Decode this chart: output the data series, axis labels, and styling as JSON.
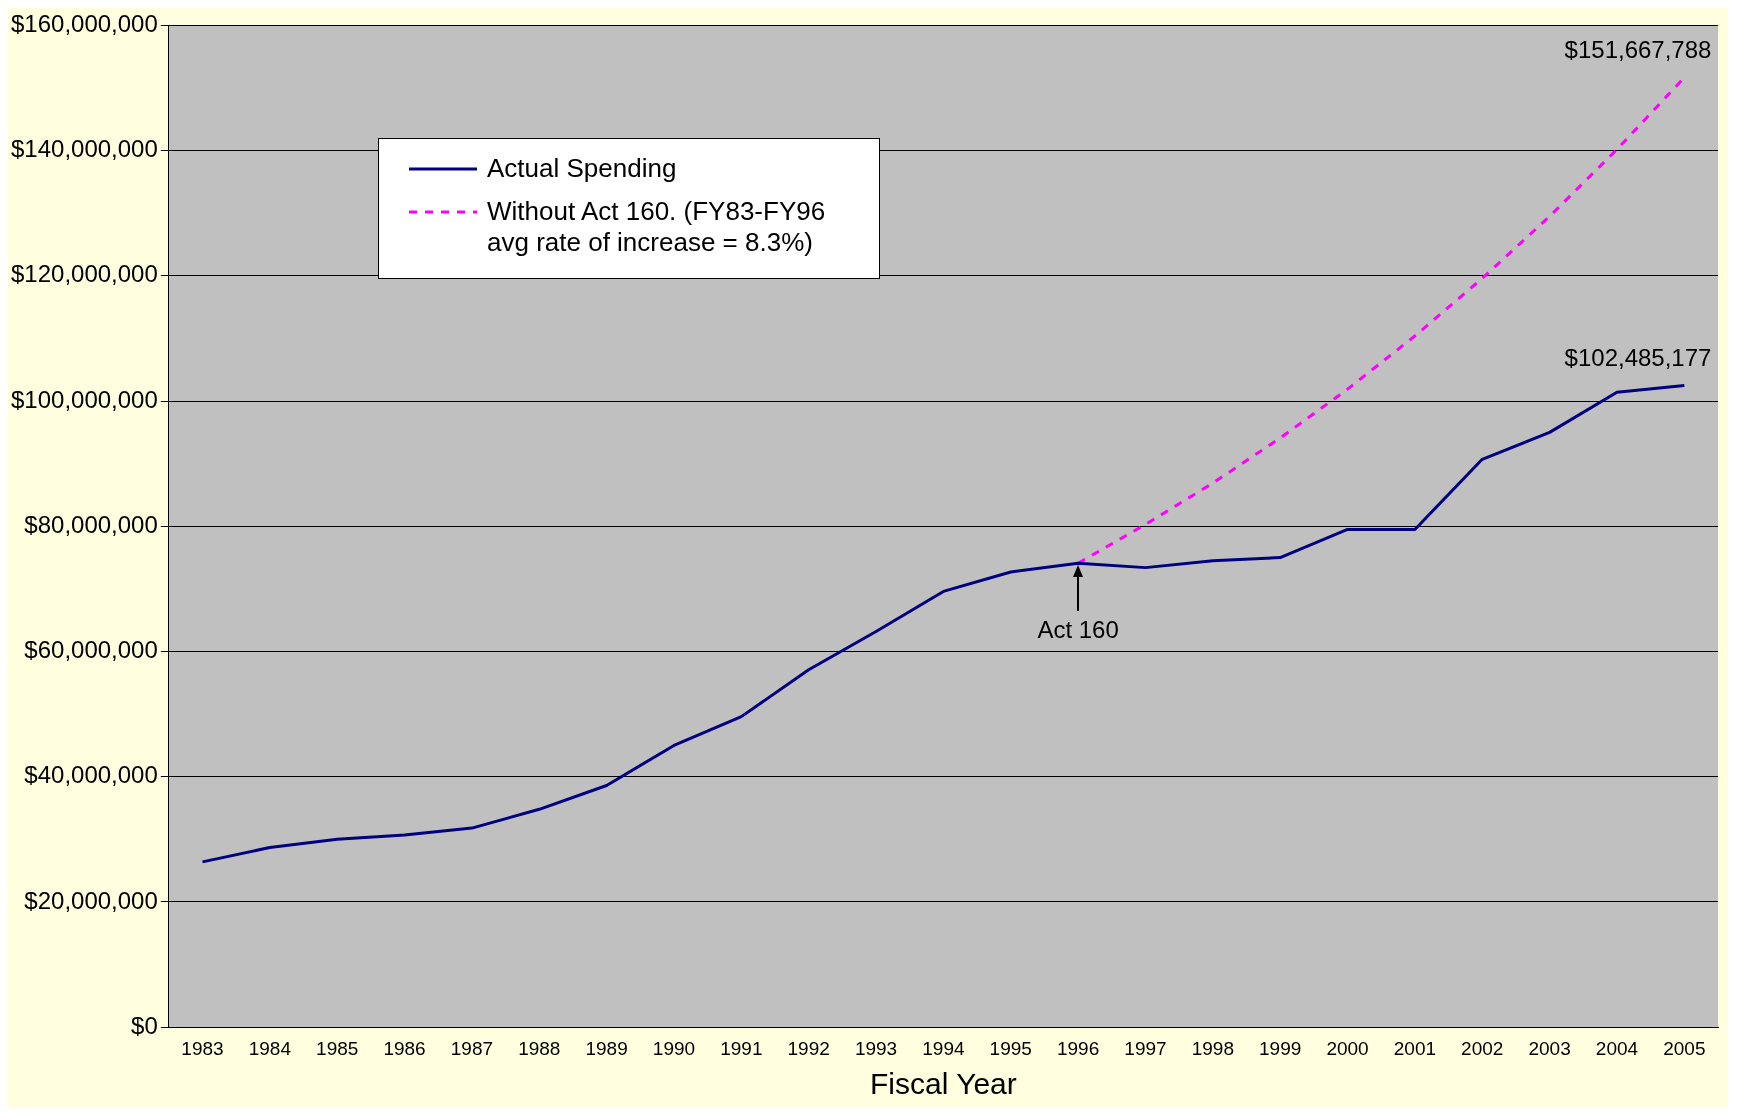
{
  "chart_data": {
    "type": "line",
    "xlabel": "Fiscal Year",
    "categories": [
      "1983",
      "1984",
      "1985",
      "1986",
      "1987",
      "1988",
      "1989",
      "1990",
      "1991",
      "1992",
      "1993",
      "1994",
      "1995",
      "1996",
      "1997",
      "1998",
      "1999",
      "2000",
      "2001",
      "2002",
      "2003",
      "2004",
      "2005"
    ],
    "series": [
      {
        "name": "Actual Spending",
        "color": "#000080",
        "line_style": "solid",
        "values": [
          26400000,
          28700000,
          30000000,
          30700000,
          31800000,
          34800000,
          38600000,
          45000000,
          49600000,
          57100000,
          63200000,
          69600000,
          72700000,
          74100000,
          73400000,
          74500000,
          75000000,
          79500000,
          79500000,
          90700000,
          95000000,
          101400000,
          102485177
        ],
        "value_labels": [
          null,
          null,
          null,
          null,
          null,
          null,
          null,
          null,
          null,
          null,
          null,
          null,
          null,
          null,
          null,
          null,
          null,
          null,
          null,
          null,
          null,
          null,
          "$102,485,177"
        ]
      },
      {
        "name": "Without Act 160. (FY83-FY96 avg rate of increase = 8.3%)",
        "color": "#ff00ff",
        "line_style": "dashed",
        "values": [
          null,
          null,
          null,
          null,
          null,
          null,
          null,
          null,
          null,
          null,
          null,
          null,
          null,
          74100000,
          80300000,
          86900000,
          94100000,
          101900000,
          110400000,
          119600000,
          129500000,
          140200000,
          151667788
        ],
        "value_labels": [
          null,
          null,
          null,
          null,
          null,
          null,
          null,
          null,
          null,
          null,
          null,
          null,
          null,
          null,
          null,
          null,
          null,
          null,
          null,
          null,
          null,
          null,
          "$151,667,788"
        ]
      }
    ],
    "ylim": [
      0,
      160000000
    ],
    "yticks": [
      {
        "value": 0,
        "label": "$0"
      },
      {
        "value": 20000000,
        "label": "$20,000,000"
      },
      {
        "value": 40000000,
        "label": "$40,000,000"
      },
      {
        "value": 60000000,
        "label": "$60,000,000"
      },
      {
        "value": 80000000,
        "label": "$80,000,000"
      },
      {
        "value": 100000000,
        "label": "$100,000,000"
      },
      {
        "value": 120000000,
        "label": "$120,000,000"
      },
      {
        "value": 140000000,
        "label": "$140,000,000"
      },
      {
        "value": 160000000,
        "label": "$160,000,000"
      }
    ],
    "grid": "y",
    "legend": "top left",
    "marker": "none",
    "annotations": [
      {
        "text": "Act 160",
        "x": "1996",
        "y": 74100000
      }
    ]
  }
}
